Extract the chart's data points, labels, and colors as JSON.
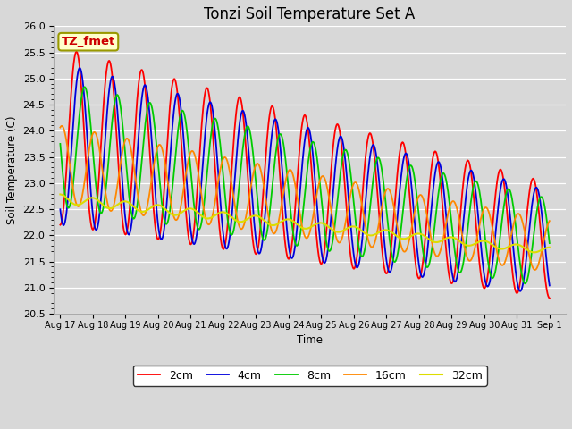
{
  "title": "Tonzi Soil Temperature Set A",
  "xlabel": "Time",
  "ylabel": "Soil Temperature (C)",
  "annotation": "TZ_fmet",
  "ylim": [
    20.5,
    26.0
  ],
  "xlim": [
    -0.2,
    15.5
  ],
  "x_tick_labels": [
    "Aug 17",
    "Aug 18",
    "Aug 19",
    "Aug 20",
    "Aug 21",
    "Aug 22",
    "Aug 23",
    "Aug 24",
    "Aug 25",
    "Aug 26",
    "Aug 27",
    "Aug 28",
    "Aug 29",
    "Aug 30",
    "Aug 31",
    "Sep 1"
  ],
  "colors": {
    "2cm": "#ff0000",
    "4cm": "#0000dd",
    "8cm": "#00cc00",
    "16cm": "#ff8800",
    "32cm": "#dddd00"
  },
  "legend_labels": [
    "2cm",
    "4cm",
    "8cm",
    "16cm",
    "32cm"
  ],
  "background_color": "#d8d8d8",
  "fig_bg_color": "#d8d8d8",
  "title_fontsize": 12,
  "annotation_bg": "#ffffcc",
  "annotation_border": "#999900"
}
